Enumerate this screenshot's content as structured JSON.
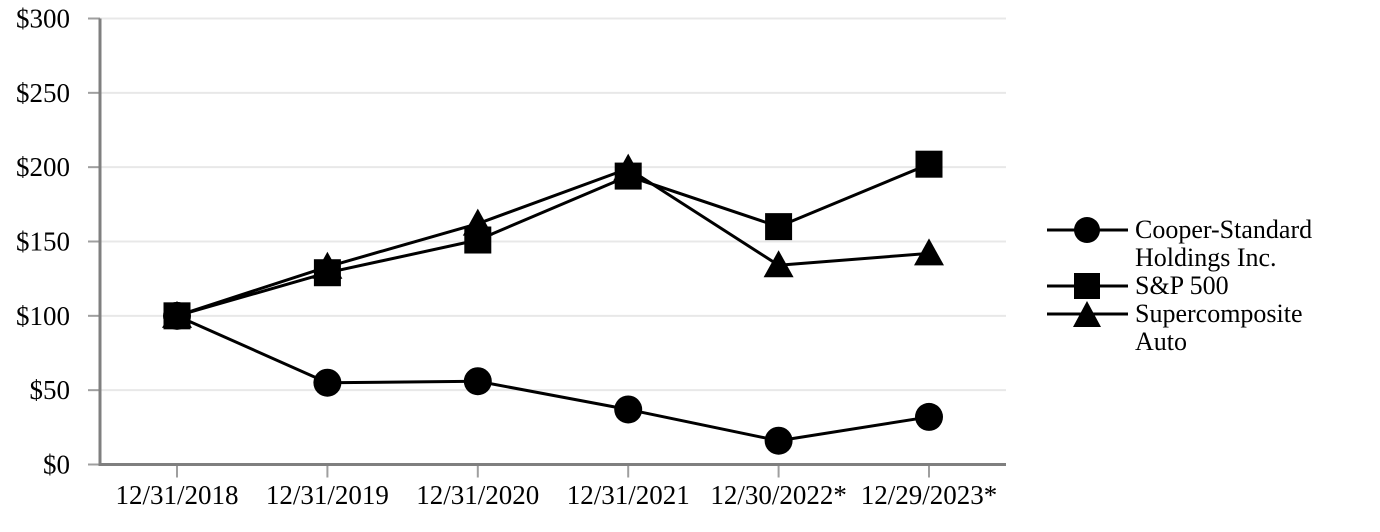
{
  "chart_data": {
    "type": "line",
    "title": "",
    "xlabel": "",
    "ylabel": "",
    "categories": [
      "12/31/2018",
      "12/31/2019",
      "12/31/2020",
      "12/31/2021",
      "12/30/2022*",
      "12/29/2023*"
    ],
    "series": [
      {
        "name": "Cooper-Standard Holdings Inc.",
        "marker": "circle",
        "values": [
          100,
          55,
          56,
          37,
          16,
          32
        ]
      },
      {
        "name": "S&P 500",
        "marker": "square",
        "values": [
          100,
          129,
          151,
          194,
          160,
          202
        ]
      },
      {
        "name": "Supercomposite Auto",
        "marker": "triangle",
        "values": [
          100,
          133,
          162,
          199,
          134,
          142
        ]
      }
    ],
    "ylim": [
      0,
      300
    ],
    "y_tick_step": 50,
    "y_tick_labels": [
      "$0",
      "$50",
      "$100",
      "$150",
      "$200",
      "$250",
      "$300"
    ],
    "grid": true,
    "legend_position": "right",
    "colors": {
      "line": "#000000",
      "marker": "#000000",
      "text": "#000000",
      "axis": "#7f7f7f",
      "tick": "#9f9f9f",
      "gridline": "#e8e8e8"
    }
  }
}
